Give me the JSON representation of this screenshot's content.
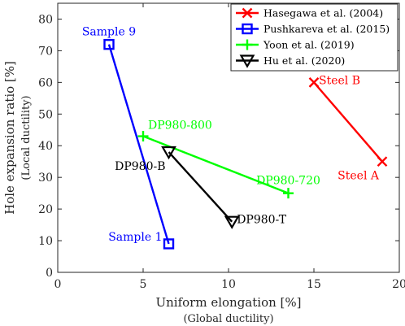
{
  "chart_data": {
    "type": "line",
    "xlabel": "Uniform elongation [%]",
    "xlabel_sub": "(Global ductility)",
    "ylabel": "Hole expansion ratio [%]",
    "ylabel_sub": "(Local ductility)",
    "xlim": [
      0,
      20
    ],
    "ylim": [
      0,
      85
    ],
    "xticks": [
      0,
      5,
      10,
      15,
      20
    ],
    "yticks": [
      0,
      10,
      20,
      30,
      40,
      50,
      60,
      70,
      80
    ],
    "grid": false,
    "legend_position": "top-right",
    "series": [
      {
        "name": "Hasegawa et al. (2004)",
        "color": "#ff0000",
        "marker": "x",
        "points": [
          {
            "x": 15,
            "y": 60,
            "label": "Steel B",
            "label_pos": "right"
          },
          {
            "x": 19,
            "y": 35,
            "label": "Steel A",
            "label_pos": "below-left"
          }
        ]
      },
      {
        "name": "Pushkareva et al. (2015)",
        "color": "#0000ff",
        "marker": "square",
        "points": [
          {
            "x": 3,
            "y": 72,
            "label": "Sample 9",
            "label_pos": "above"
          },
          {
            "x": 6.5,
            "y": 9,
            "label": "Sample 1",
            "label_pos": "left"
          }
        ]
      },
      {
        "name": "Yoon et al. (2019)",
        "color": "#00ff00",
        "marker": "plus",
        "points": [
          {
            "x": 5,
            "y": 43,
            "label": "DP980-800",
            "label_pos": "above-right"
          },
          {
            "x": 13.5,
            "y": 25,
            "label": "DP980-720",
            "label_pos": "above"
          }
        ]
      },
      {
        "name": "Hu et al. (2020)",
        "color": "#000000",
        "marker": "triangle-down",
        "points": [
          {
            "x": 6.5,
            "y": 38,
            "label": "DP980-B",
            "label_pos": "below-left"
          },
          {
            "x": 10.2,
            "y": 16,
            "label": "DP980-T",
            "label_pos": "right"
          }
        ]
      }
    ]
  }
}
